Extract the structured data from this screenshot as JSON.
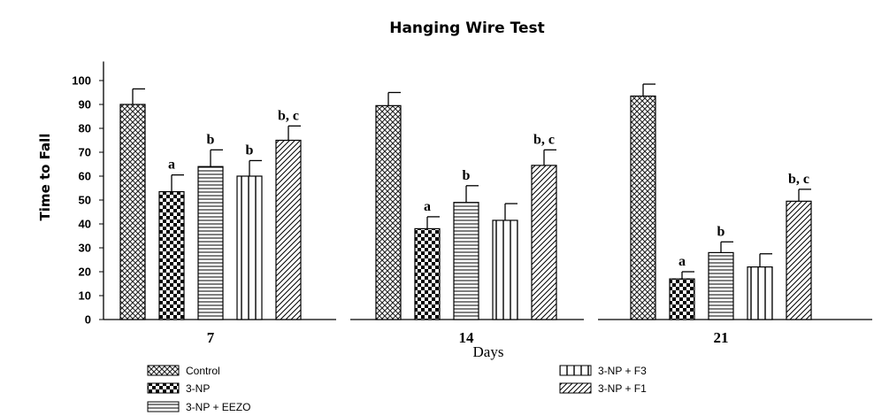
{
  "chart_data": {
    "type": "bar",
    "title": "Hanging Wire Test",
    "xlabel": "Days",
    "ylabel": "Time to Fall",
    "ylim": [
      0,
      105
    ],
    "yticks": [
      0,
      10,
      20,
      30,
      40,
      50,
      60,
      70,
      80,
      90,
      100
    ],
    "categories": [
      "7",
      "14",
      "21"
    ],
    "series": [
      {
        "name": "Control",
        "pattern": "crosshatch",
        "values": [
          90,
          89.5,
          93.5
        ],
        "errors": [
          6.5,
          5.5,
          5
        ],
        "labels": [
          "",
          "",
          ""
        ]
      },
      {
        "name": "3-NP",
        "pattern": "checker",
        "values": [
          53.5,
          38,
          17
        ],
        "errors": [
          7,
          5,
          3
        ],
        "labels": [
          "a",
          "a",
          "a"
        ]
      },
      {
        "name": "3-NP + EEZO",
        "pattern": "horizontal",
        "values": [
          64,
          49,
          28
        ],
        "errors": [
          7,
          7,
          4.5
        ],
        "labels": [
          "b",
          "b",
          "b"
        ]
      },
      {
        "name": "3-NP + F3",
        "pattern": "vertical",
        "values": [
          60,
          41.5,
          22
        ],
        "errors": [
          6.5,
          7,
          5.5
        ],
        "labels": [
          "b",
          "",
          ""
        ]
      },
      {
        "name": "3-NP + F1",
        "pattern": "diagonal",
        "values": [
          75,
          64.5,
          49.5
        ],
        "errors": [
          6,
          6.5,
          5
        ],
        "labels": [
          "b, c",
          "b, c",
          "b, c"
        ]
      }
    ],
    "legend_position": "bottom",
    "grid": false
  }
}
